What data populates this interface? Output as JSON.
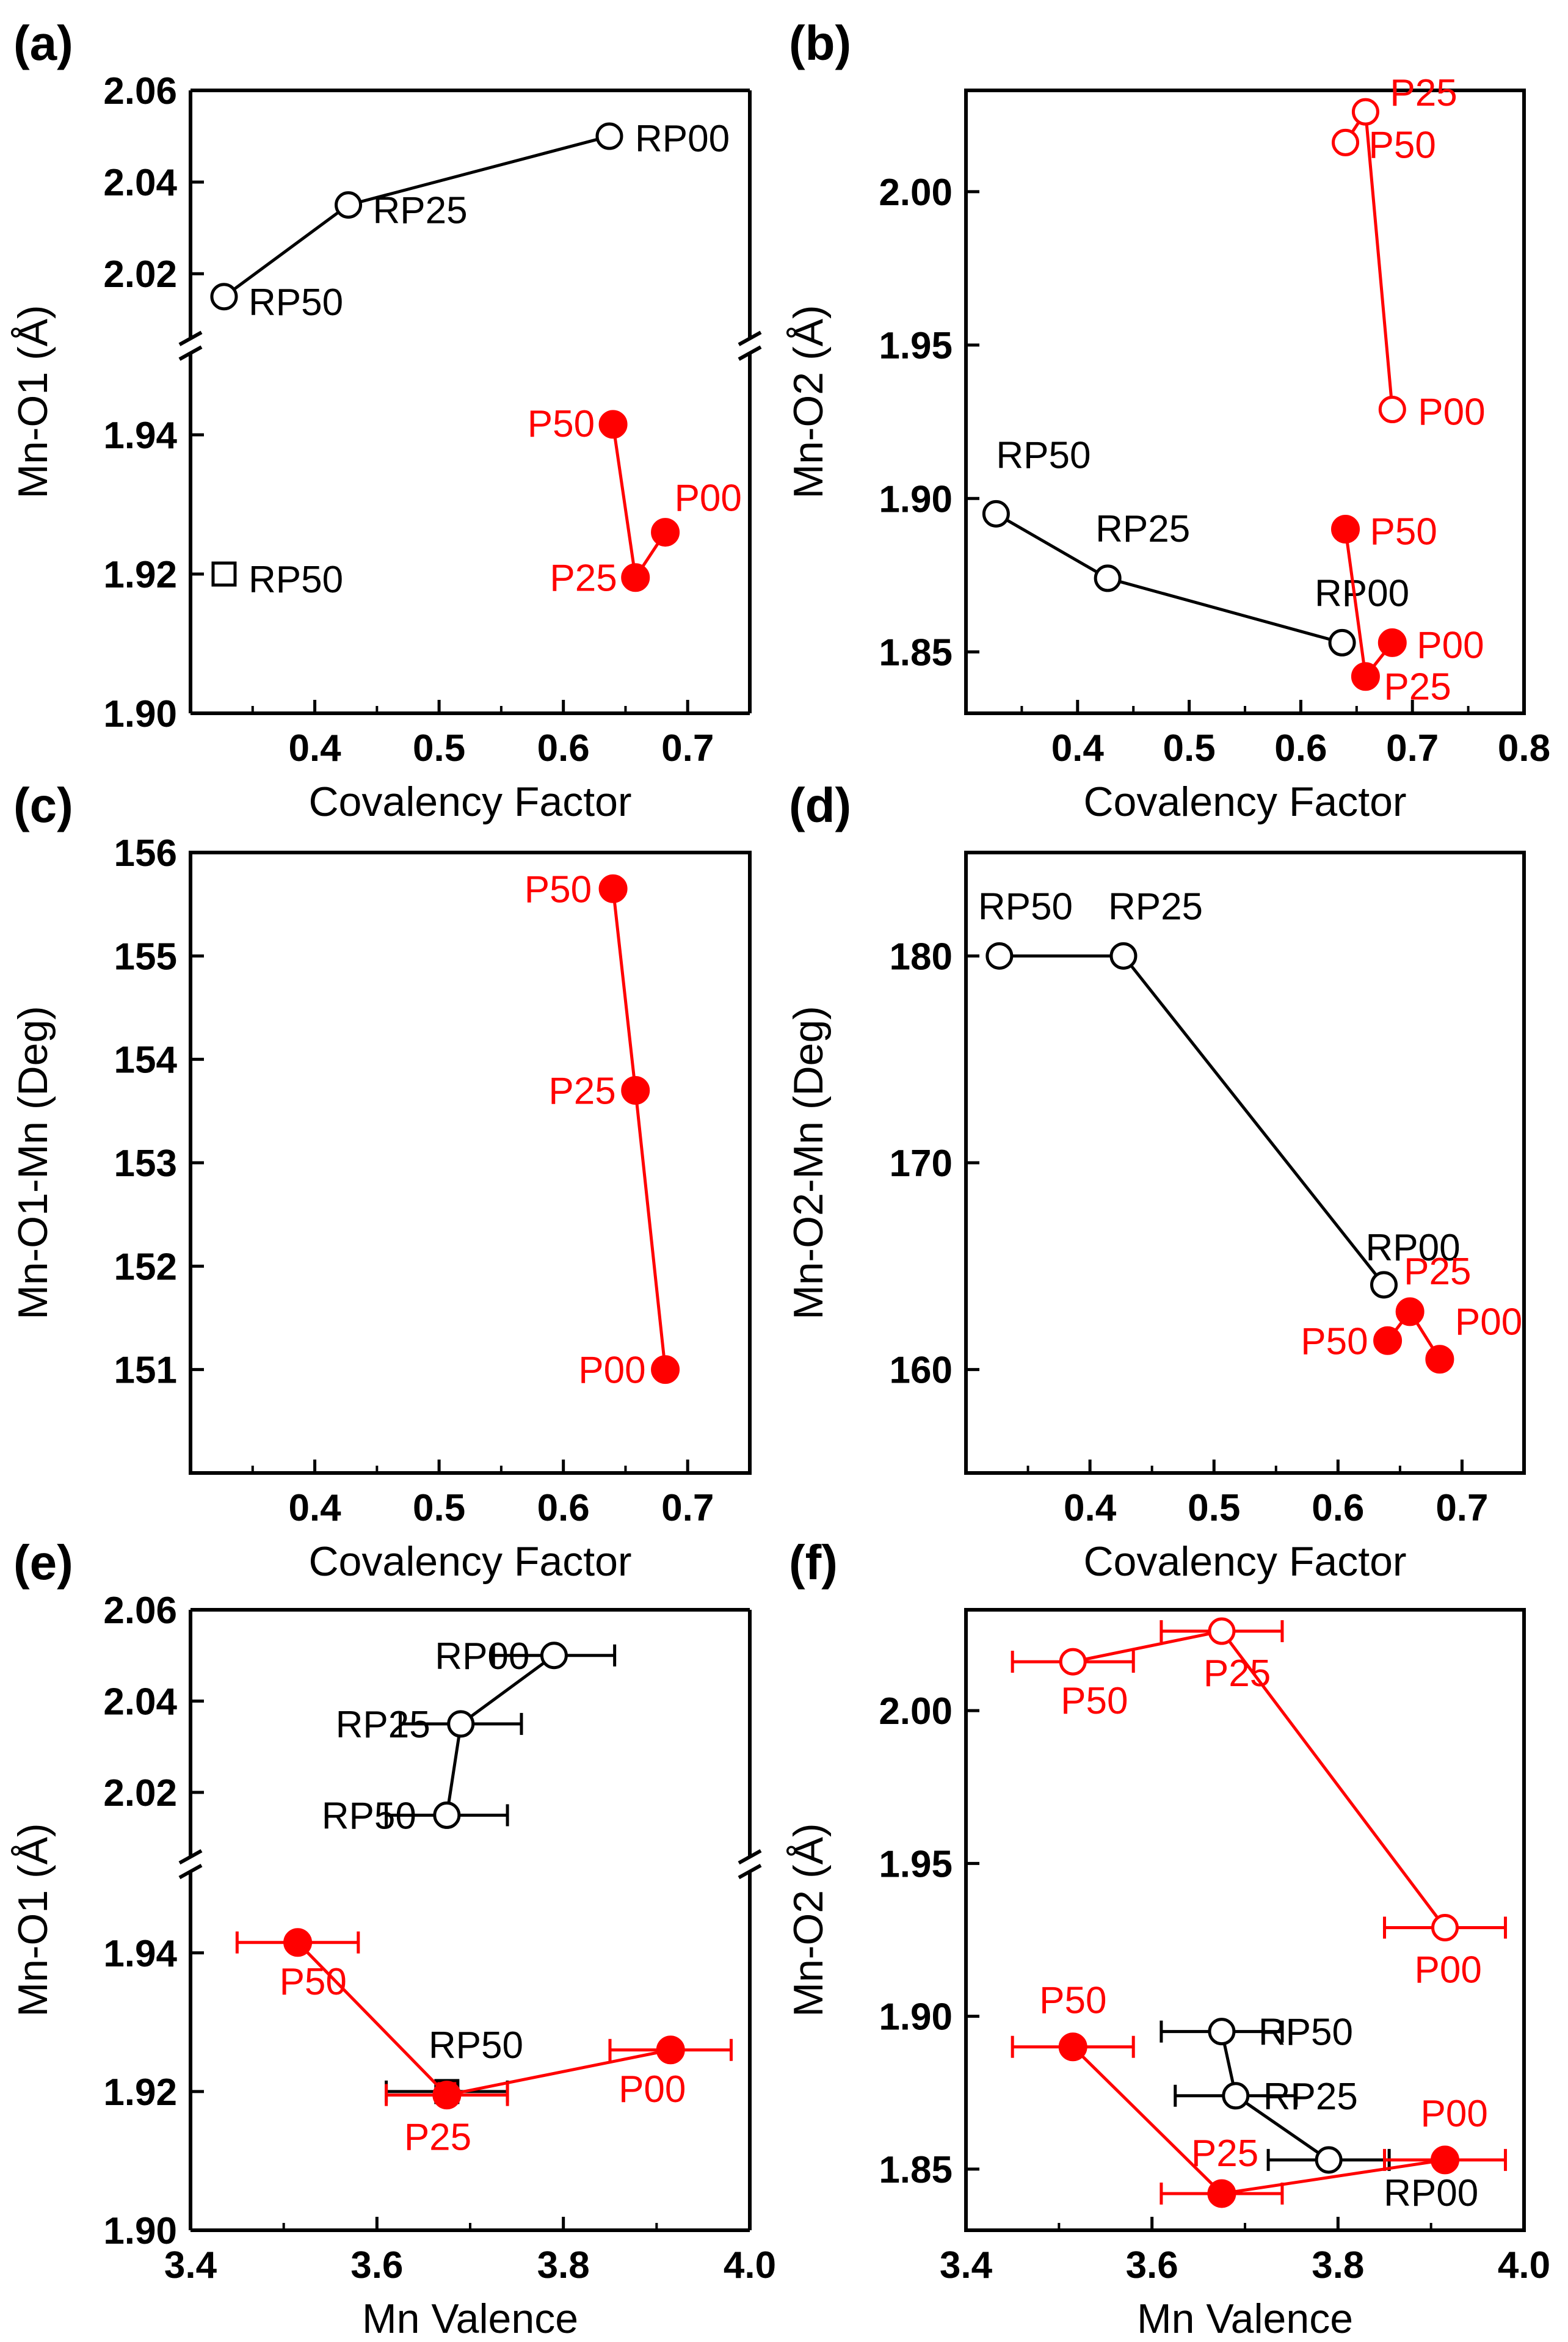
{
  "colors": {
    "black": "#000000",
    "red": "#ff0000"
  },
  "chart_data": [
    {
      "panel": "(a)",
      "type": "scatter",
      "xlabel": "Covalency Factor",
      "ylabel": "Mn-O1 (Å)",
      "xlim": [
        0.3,
        0.75
      ],
      "xticks": [
        0.4,
        0.5,
        0.6,
        0.7
      ],
      "ybreak": true,
      "ylim_upper": [
        2.007,
        2.06
      ],
      "yticks_upper": [
        2.02,
        2.04,
        2.06
      ],
      "ylim_lower": [
        1.9,
        1.951
      ],
      "yticks_lower": [
        1.9,
        1.92,
        1.94
      ],
      "series": [
        {
          "name": "RP",
          "color": "black",
          "marker": "circle-open",
          "connected": true,
          "segment": "upper",
          "points": [
            {
              "x": 0.327,
              "y": 2.015,
              "label": "RP50"
            },
            {
              "x": 0.427,
              "y": 2.035,
              "label": "RP25"
            },
            {
              "x": 0.637,
              "y": 2.05,
              "label": "RP00"
            }
          ]
        },
        {
          "name": "RP50 square",
          "color": "black",
          "marker": "square-open",
          "connected": false,
          "segment": "lower",
          "points": [
            {
              "x": 0.327,
              "y": 1.92,
              "label": "RP50"
            }
          ]
        },
        {
          "name": "P",
          "color": "red",
          "marker": "circle-filled",
          "connected": true,
          "segment": "lower",
          "points": [
            {
              "x": 0.64,
              "y": 1.9415,
              "label": "P50"
            },
            {
              "x": 0.658,
              "y": 1.9195,
              "label": "P25"
            },
            {
              "x": 0.682,
              "y": 1.926,
              "label": "P00"
            }
          ]
        }
      ]
    },
    {
      "panel": "(b)",
      "type": "scatter",
      "xlabel": "Covalency Factor",
      "ylabel": "Mn-O2 (Å)",
      "xlim": [
        0.3,
        0.8
      ],
      "xticks": [
        0.4,
        0.5,
        0.6,
        0.7,
        0.8
      ],
      "ylim": [
        1.83,
        2.033
      ],
      "yticks": [
        1.85,
        1.9,
        1.95,
        2.0
      ],
      "series": [
        {
          "name": "RP",
          "color": "black",
          "marker": "circle-open",
          "connected": true,
          "points": [
            {
              "x": 0.327,
              "y": 1.895,
              "label": "RP50"
            },
            {
              "x": 0.427,
              "y": 1.874,
              "label": "RP25"
            },
            {
              "x": 0.637,
              "y": 1.853,
              "label": "RP00"
            }
          ]
        },
        {
          "name": "P open",
          "color": "red",
          "marker": "circle-open",
          "connected": true,
          "points": [
            {
              "x": 0.64,
              "y": 2.016,
              "label": "P50"
            },
            {
              "x": 0.658,
              "y": 2.026,
              "label": "P25"
            },
            {
              "x": 0.682,
              "y": 1.929,
              "label": "P00"
            }
          ]
        },
        {
          "name": "P filled",
          "color": "red",
          "marker": "circle-filled",
          "connected": true,
          "points": [
            {
              "x": 0.64,
              "y": 1.89,
              "label": "P50"
            },
            {
              "x": 0.658,
              "y": 1.842,
              "label": "P25"
            },
            {
              "x": 0.682,
              "y": 1.853,
              "label": "P00"
            }
          ]
        }
      ]
    },
    {
      "panel": "(c)",
      "type": "scatter",
      "xlabel": "Covalency Factor",
      "ylabel": "Mn-O1-Mn (Deg)",
      "xlim": [
        0.3,
        0.75
      ],
      "xticks": [
        0.4,
        0.5,
        0.6,
        0.7
      ],
      "ylim": [
        150,
        156
      ],
      "yticks": [
        151,
        152,
        153,
        154,
        155,
        156
      ],
      "series": [
        {
          "name": "P",
          "color": "red",
          "marker": "circle-filled",
          "connected": true,
          "points": [
            {
              "x": 0.64,
              "y": 155.65,
              "label": "P50"
            },
            {
              "x": 0.658,
              "y": 153.7,
              "label": "P25"
            },
            {
              "x": 0.682,
              "y": 151.0,
              "label": "P00"
            }
          ]
        }
      ]
    },
    {
      "panel": "(d)",
      "type": "scatter",
      "xlabel": "Covalency Factor",
      "ylabel": "Mn-O2-Mn (Deg)",
      "xlim": [
        0.3,
        0.75
      ],
      "xticks": [
        0.4,
        0.5,
        0.6,
        0.7
      ],
      "ylim": [
        155,
        185
      ],
      "yticks": [
        160,
        170,
        180
      ],
      "series": [
        {
          "name": "RP",
          "color": "black",
          "marker": "circle-open",
          "connected": true,
          "points": [
            {
              "x": 0.327,
              "y": 180,
              "label": "RP50"
            },
            {
              "x": 0.427,
              "y": 180,
              "label": "RP25"
            },
            {
              "x": 0.637,
              "y": 164.1,
              "label": "RP00"
            }
          ]
        },
        {
          "name": "P",
          "color": "red",
          "marker": "circle-filled",
          "connected": true,
          "points": [
            {
              "x": 0.64,
              "y": 161.4,
              "label": "P50"
            },
            {
              "x": 0.658,
              "y": 162.8,
              "label": "P25"
            },
            {
              "x": 0.682,
              "y": 160.5,
              "label": "P00"
            }
          ]
        }
      ]
    },
    {
      "panel": "(e)",
      "type": "scatter",
      "xlabel": "Mn Valence",
      "ylabel": "Mn-O1 (Å)",
      "xlim": [
        3.4,
        4.0
      ],
      "xticks": [
        3.4,
        3.6,
        3.8,
        4.0
      ],
      "ybreak": true,
      "ylim_upper": [
        2.007,
        2.06
      ],
      "yticks_upper": [
        2.02,
        2.04,
        2.06
      ],
      "ylim_lower": [
        1.9,
        1.951
      ],
      "yticks_lower": [
        1.9,
        1.92,
        1.94
      ],
      "series": [
        {
          "name": "RP",
          "color": "black",
          "marker": "circle-open",
          "connected": true,
          "segment": "upper",
          "points": [
            {
              "x": 3.675,
              "y": 2.015,
              "xerr": 0.065,
              "label": "RP50"
            },
            {
              "x": 3.69,
              "y": 2.035,
              "xerr": 0.065,
              "label": "RP25"
            },
            {
              "x": 3.79,
              "y": 2.05,
              "xerr": 0.065,
              "label": "RP00"
            }
          ]
        },
        {
          "name": "RP50 square",
          "color": "black",
          "marker": "square-filled-red",
          "connected": false,
          "segment": "lower",
          "points": [
            {
              "x": 3.675,
              "y": 1.92,
              "xerr": 0.065,
              "label": "RP50"
            }
          ]
        },
        {
          "name": "P",
          "color": "red",
          "marker": "circle-filled",
          "connected": true,
          "segment": "lower",
          "points": [
            {
              "x": 3.515,
              "y": 1.9415,
              "xerr": 0.065,
              "label": "P50"
            },
            {
              "x": 3.675,
              "y": 1.9195,
              "xerr": 0.065,
              "label": "P25"
            },
            {
              "x": 3.915,
              "y": 1.926,
              "xerr": 0.065,
              "label": "P00"
            }
          ]
        }
      ]
    },
    {
      "panel": "(f)",
      "type": "scatter",
      "xlabel": "Mn Valence",
      "ylabel": "Mn-O2 (Å)",
      "xlim": [
        3.4,
        4.0
      ],
      "xticks": [
        3.4,
        3.6,
        3.8,
        4.0
      ],
      "ylim": [
        1.83,
        2.033
      ],
      "yticks": [
        1.85,
        1.9,
        1.95,
        2.0
      ],
      "series": [
        {
          "name": "RP",
          "color": "black",
          "marker": "circle-open",
          "connected": true,
          "points": [
            {
              "x": 3.675,
              "y": 1.895,
              "xerr": 0.065,
              "label": "RP50"
            },
            {
              "x": 3.69,
              "y": 1.874,
              "xerr": 0.065,
              "label": "RP25"
            },
            {
              "x": 3.79,
              "y": 1.853,
              "xerr": 0.065,
              "label": "RP00"
            }
          ]
        },
        {
          "name": "P open",
          "color": "red",
          "marker": "circle-open",
          "connected": true,
          "points": [
            {
              "x": 3.515,
              "y": 2.016,
              "xerr": 0.065,
              "label": "P50"
            },
            {
              "x": 3.675,
              "y": 2.026,
              "xerr": 0.065,
              "label": "P25"
            },
            {
              "x": 3.915,
              "y": 1.929,
              "xerr": 0.065,
              "label": "P00"
            }
          ]
        },
        {
          "name": "P filled",
          "color": "red",
          "marker": "circle-filled",
          "connected": true,
          "points": [
            {
              "x": 3.515,
              "y": 1.89,
              "xerr": 0.065,
              "label": "P50"
            },
            {
              "x": 3.675,
              "y": 1.842,
              "xerr": 0.065,
              "label": "P25"
            },
            {
              "x": 3.915,
              "y": 1.853,
              "xerr": 0.065,
              "label": "P00"
            }
          ]
        }
      ]
    }
  ]
}
